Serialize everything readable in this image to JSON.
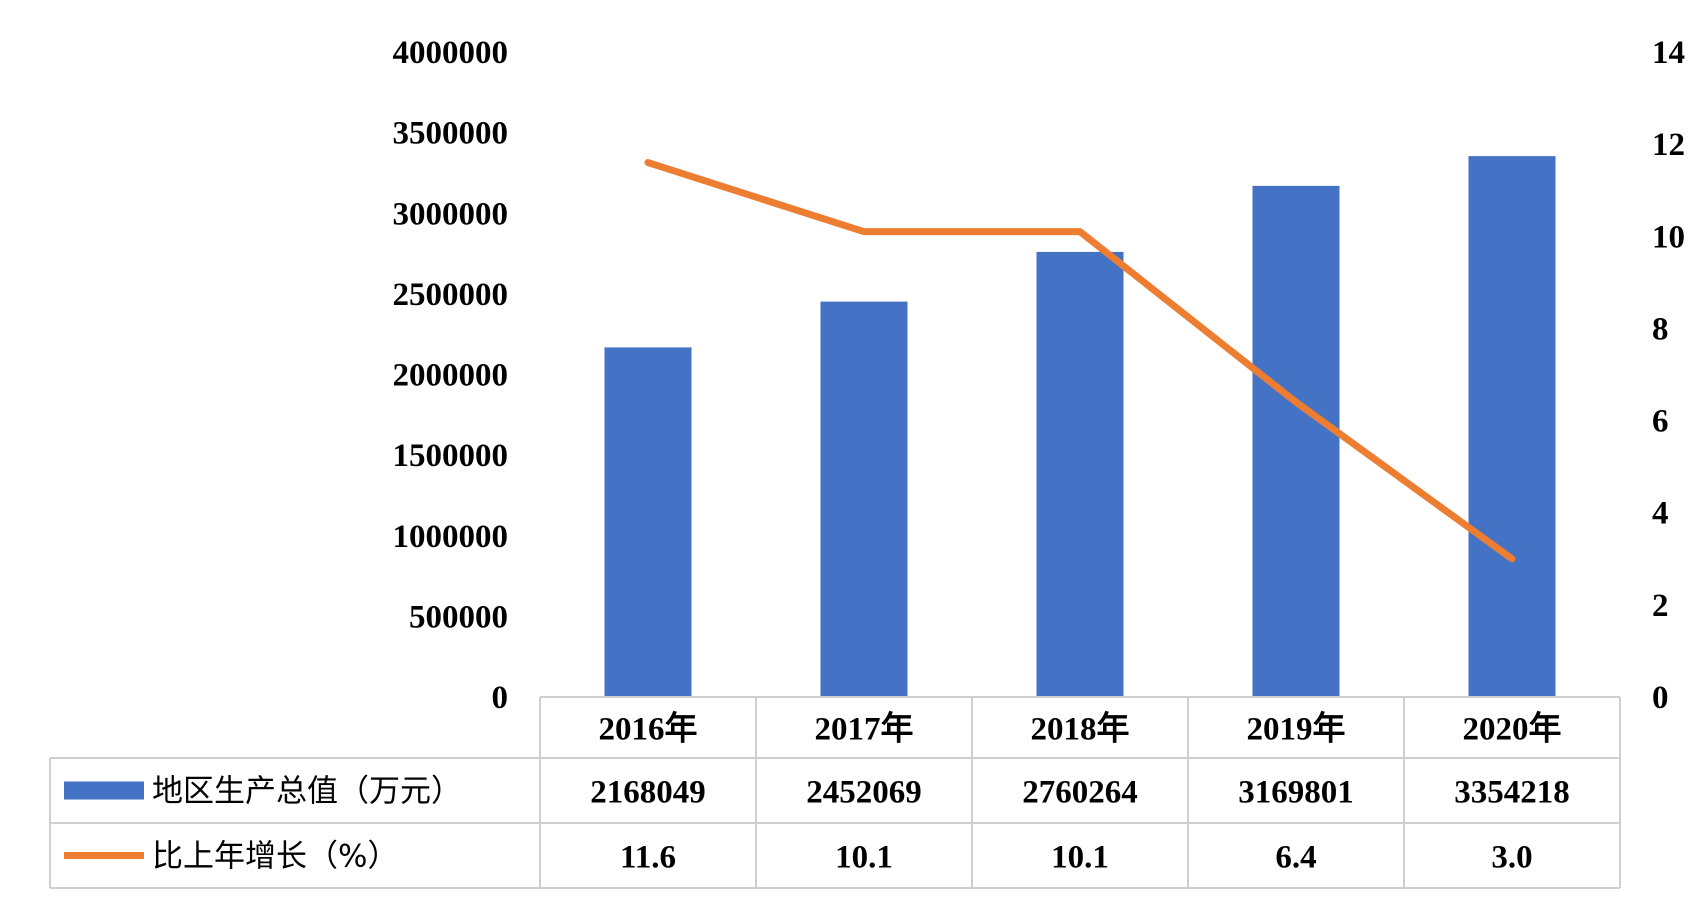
{
  "chart_data": {
    "type": "bar",
    "categories": [
      "2016年",
      "2017年",
      "2018年",
      "2019年",
      "2020年"
    ],
    "series": [
      {
        "name": "地区生产总值（万元）",
        "type": "bar",
        "axis": "left",
        "color": "#4472C4",
        "values": [
          2168049,
          2452069,
          2760264,
          3169801,
          3354218
        ],
        "labels": [
          "2168049",
          "2452069",
          "2760264",
          "3169801",
          "3354218"
        ]
      },
      {
        "name": "比上年增长（%）",
        "type": "line",
        "axis": "right",
        "color": "#ED7D31",
        "values": [
          11.6,
          10.1,
          10.1,
          6.4,
          3.0
        ],
        "labels": [
          "11.6",
          "10.1",
          "10.1",
          "6.4",
          "3.0"
        ]
      }
    ],
    "y_left": {
      "ylim": [
        0,
        4000000
      ],
      "ticks": [
        "0",
        "500000",
        "1000000",
        "1500000",
        "2000000",
        "2500000",
        "3000000",
        "3500000",
        "4000000"
      ]
    },
    "y_right": {
      "ylim": [
        0,
        14
      ],
      "ticks": [
        "0",
        "2",
        "4",
        "6",
        "8",
        "10",
        "12",
        "14"
      ]
    },
    "title": "",
    "xlabel": "",
    "grid": false,
    "legend": "data-table"
  }
}
